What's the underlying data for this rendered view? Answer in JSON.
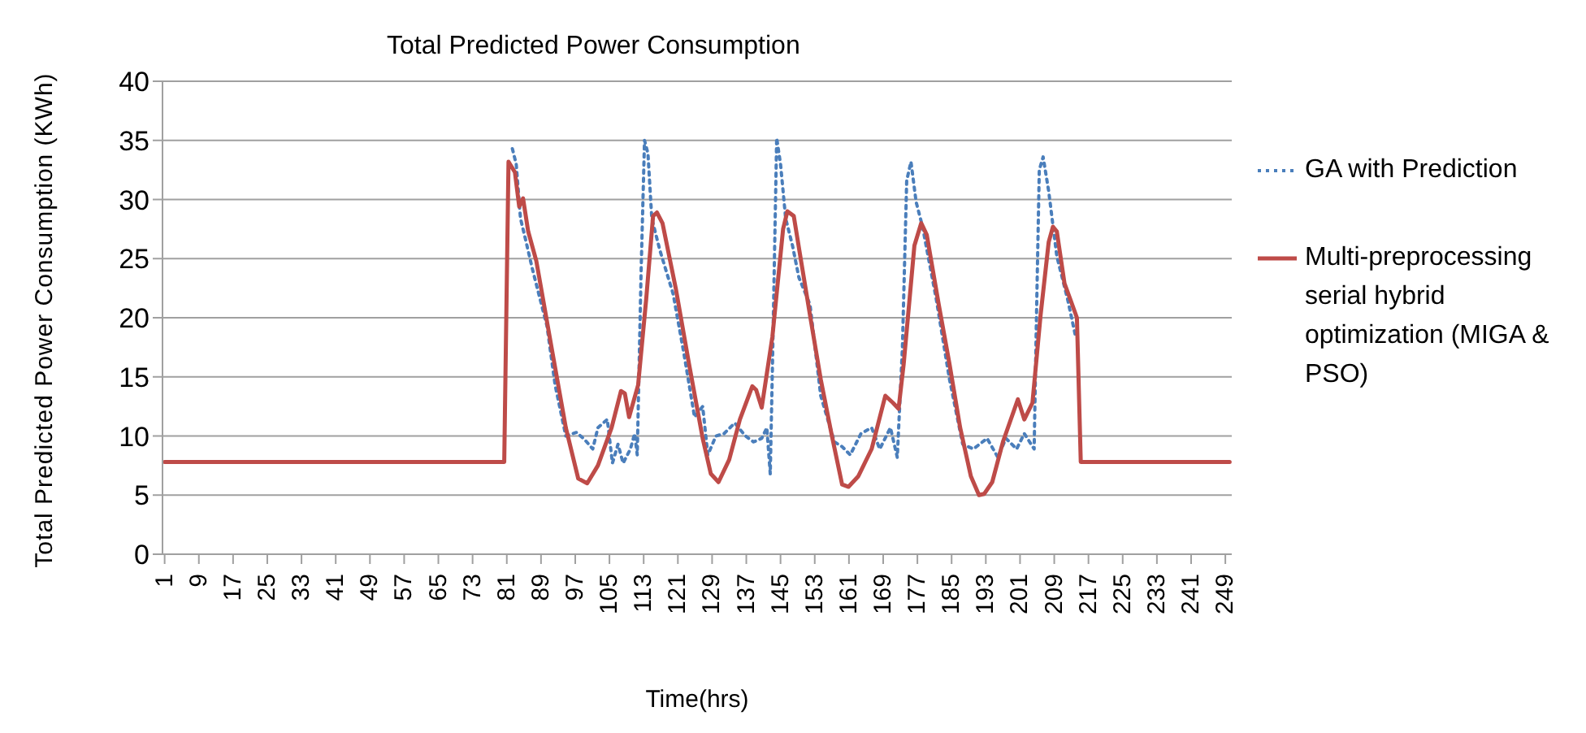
{
  "chart_data": {
    "type": "line",
    "title": "Total Predicted Power Consumption",
    "xlabel": "Time(hrs)",
    "ylabel": "Total Predicted Power Consumption (KWh)",
    "xlim": [
      0.5,
      250.5
    ],
    "xticks": [
      1,
      9,
      17,
      25,
      33,
      41,
      49,
      57,
      65,
      73,
      81,
      89,
      97,
      105,
      113,
      121,
      129,
      137,
      145,
      153,
      161,
      169,
      177,
      185,
      193,
      201,
      209,
      217,
      225,
      233,
      241,
      249
    ],
    "ylim": [
      0,
      40
    ],
    "yticks": [
      0,
      5,
      10,
      15,
      20,
      25,
      30,
      35,
      40
    ],
    "grid": "y",
    "legend": "right",
    "marker": "none",
    "series": [
      {
        "name": "GA with Prediction",
        "color": "#4a7ebb",
        "line_style": "dotted",
        "x": [
          82.3,
          83.2,
          84.2,
          85.4,
          87,
          90.4,
          92.3,
          94.8,
          97.3,
          99.2,
          101.1,
          102.3,
          104.5,
          105.7,
          107,
          108.2,
          109.9,
          110.9,
          111.5,
          112.4,
          113.2,
          114,
          114.9,
          116.8,
          119.9,
          122.4,
          124.9,
          126.8,
          128,
          129.9,
          131.8,
          134.3,
          136.8,
          138.7,
          140.6,
          141.8,
          142.6,
          143.1,
          144.1,
          145,
          146.2,
          147.8,
          149.3,
          151.9,
          154.4,
          157.6,
          159.4,
          161.3,
          163.8,
          166.3,
          168.2,
          170.7,
          172.3,
          173.5,
          174.5,
          175.5,
          176.7,
          178.2,
          181.4,
          184.5,
          187.6,
          190.1,
          193.3,
          195.8,
          197.7,
          200.2,
          202,
          204.3,
          204.8,
          205.5,
          206.4,
          207.7,
          209.6,
          212.1,
          214
        ],
        "values": [
          34.3,
          33,
          28.4,
          26.6,
          24.1,
          19.3,
          14.3,
          10,
          10.3,
          9.7,
          8.9,
          10.7,
          11.4,
          7.7,
          9.3,
          7.7,
          8.9,
          10.2,
          8.4,
          23.9,
          35,
          33.9,
          28.4,
          25.7,
          22,
          17,
          11.6,
          12.5,
          8.4,
          10,
          10.2,
          11.1,
          10,
          9.5,
          9.8,
          10.7,
          6.8,
          15.7,
          35.2,
          33,
          28.4,
          26.1,
          23.4,
          21.1,
          13.4,
          9.5,
          9.1,
          8.4,
          10.2,
          10.7,
          8.9,
          10.7,
          8.2,
          17.5,
          31.6,
          33.2,
          29.8,
          27.7,
          21.6,
          14.8,
          9.3,
          8.9,
          9.8,
          8.2,
          9.8,
          8.9,
          10.2,
          8.9,
          19.3,
          32.5,
          33.6,
          30.7,
          25.2,
          21.6,
          18.4
        ]
      },
      {
        "name": "Multi-preprocessing serial hybrid optimization (MIGA & PSO)",
        "color": "#be4b48",
        "line_style": "solid",
        "x": [
          1,
          80.4,
          81.4,
          82.9,
          83.9,
          84.8,
          86,
          87.9,
          91.7,
          94.8,
          97.7,
          99.8,
          102.3,
          105.5,
          107.7,
          108.6,
          109.6,
          111.7,
          113.6,
          115.2,
          116.1,
          117.4,
          120.5,
          123.6,
          126.8,
          128.7,
          130.5,
          133,
          135.5,
          138.4,
          139.3,
          140.6,
          143.1,
          145.6,
          146.6,
          148.1,
          149.4,
          151.9,
          154.4,
          156.9,
          159.4,
          160.9,
          163.2,
          166.3,
          169.5,
          171.3,
          172.6,
          173.8,
          176.3,
          177.9,
          179.2,
          182,
          184.5,
          187,
          189.5,
          191.4,
          192.6,
          194.5,
          197,
          200.5,
          202,
          203.9,
          205.8,
          207.7,
          208.7,
          209.6,
          211.4,
          212.7,
          214.3,
          215.2,
          250
        ],
        "values": [
          7.8,
          7.8,
          33.2,
          32.3,
          29.4,
          30.1,
          27.3,
          24.8,
          17,
          10.7,
          6.4,
          6,
          7.5,
          10.7,
          13.8,
          13.6,
          11.6,
          14.3,
          21.6,
          28.6,
          28.9,
          28,
          22.5,
          16.1,
          9.8,
          6.8,
          6.1,
          8,
          11.4,
          14.2,
          13.9,
          12.4,
          18.4,
          27.5,
          29,
          28.6,
          25.7,
          20.2,
          14.8,
          10.2,
          5.9,
          5.7,
          6.6,
          8.9,
          13.4,
          12.8,
          12.3,
          16.1,
          26.1,
          28,
          27,
          21.1,
          16.1,
          10.7,
          6.6,
          5,
          5.1,
          6.1,
          9.5,
          13.1,
          11.4,
          12.8,
          20.2,
          26.4,
          27.7,
          27.3,
          22.9,
          21.6,
          20,
          7.8,
          7.8
        ]
      }
    ]
  }
}
